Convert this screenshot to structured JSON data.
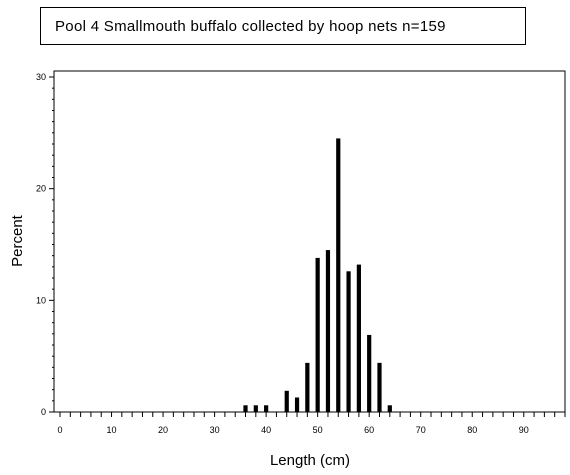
{
  "chart_data": {
    "type": "bar",
    "title": "Pool 4 Smallmouth buffalo collected by hoop nets   n=159",
    "xlabel": "Length (cm)",
    "ylabel": "Percent",
    "xlim": [
      0,
      98
    ],
    "ylim": [
      0,
      30
    ],
    "x_ticks": [
      0,
      10,
      20,
      30,
      40,
      50,
      60,
      70,
      80,
      90
    ],
    "y_ticks": [
      0,
      10,
      20,
      30
    ],
    "grid": false,
    "legend": "none",
    "bar_color": "#000000",
    "x": [
      36,
      38,
      40,
      44,
      46,
      48,
      50,
      52,
      54,
      56,
      58,
      60,
      62,
      64
    ],
    "values": [
      0.6,
      0.6,
      0.6,
      1.9,
      1.3,
      4.4,
      13.8,
      14.5,
      24.5,
      12.6,
      13.2,
      6.9,
      4.4,
      0.6
    ]
  }
}
